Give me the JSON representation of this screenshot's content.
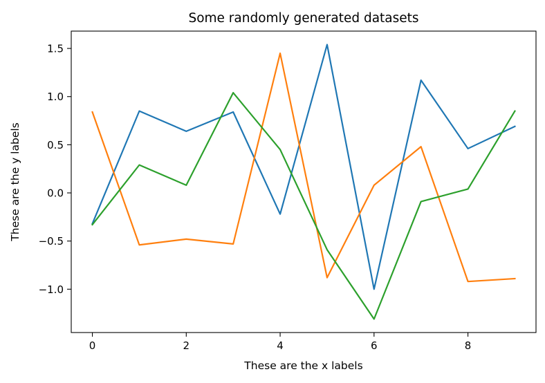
{
  "chart_data": {
    "type": "line",
    "title": "Some randomly generated datasets",
    "xlabel": "These are the x labels",
    "ylabel": "These are the y labels",
    "x": [
      0,
      1,
      2,
      3,
      4,
      5,
      6,
      7,
      8,
      9
    ],
    "xlim": [
      -0.45,
      9.45
    ],
    "ylim": [
      -1.45,
      1.68
    ],
    "xticks": [
      0,
      2,
      4,
      6,
      8
    ],
    "xtick_labels": [
      "0",
      "2",
      "4",
      "6",
      "8"
    ],
    "yticks": [
      -1.0,
      -0.5,
      0.0,
      0.5,
      1.0,
      1.5
    ],
    "ytick_labels": [
      "−1.0",
      "−0.5",
      "0.0",
      "0.5",
      "1.0",
      "1.5"
    ],
    "grid": false,
    "legend": false,
    "series": [
      {
        "color": "#1f77b4",
        "values": [
          -0.32,
          0.85,
          0.64,
          0.84,
          -0.22,
          1.54,
          -1.0,
          1.17,
          0.46,
          0.69
        ]
      },
      {
        "color": "#ff7f0e",
        "values": [
          0.84,
          -0.54,
          -0.48,
          -0.53,
          1.45,
          -0.88,
          0.08,
          0.48,
          -0.92,
          -0.89
        ]
      },
      {
        "color": "#2ca02c",
        "values": [
          -0.33,
          0.29,
          0.08,
          1.04,
          0.45,
          -0.59,
          -1.31,
          -0.09,
          0.04,
          0.85
        ]
      }
    ]
  }
}
